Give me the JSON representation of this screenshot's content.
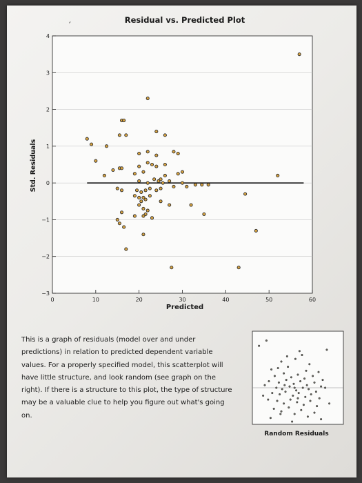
{
  "caption": "This is a graph of residuals (model over and under predictions) in relation to predicted dependent variable values. For a properly specified model, this scatterplot will have little structure, and look random (see graph on the right). If there is a structure to this plot, the type of structure may be a valuable clue to help you figure out what's going on.",
  "colors": {
    "point_fill": "#d9a441",
    "point_stroke": "#2a2a2a",
    "axis": "#222222",
    "zero_line": "#111111"
  },
  "chart_data": [
    {
      "type": "scatter",
      "title": "Residual vs. Predicted Plot",
      "xlabel": "Predicted",
      "ylabel": "Std. Residuals",
      "xlim": [
        0,
        60
      ],
      "ylim": [
        -3,
        4
      ],
      "xticks": [
        0,
        10,
        20,
        30,
        40,
        50,
        60
      ],
      "yticks": [
        -3,
        -2,
        -1,
        0,
        1,
        2,
        3,
        4
      ],
      "grid": "horizontal",
      "reference_line": {
        "y": 0,
        "x_from": 8,
        "x_to": 58
      },
      "points": [
        [
          57,
          3.5
        ],
        [
          22,
          2.3
        ],
        [
          16,
          1.7
        ],
        [
          16.5,
          1.7
        ],
        [
          15.5,
          1.3
        ],
        [
          17,
          1.3
        ],
        [
          24,
          1.4
        ],
        [
          26,
          1.3
        ],
        [
          8,
          1.2
        ],
        [
          9,
          1.05
        ],
        [
          12.5,
          1.0
        ],
        [
          10,
          0.6
        ],
        [
          20,
          0.8
        ],
        [
          22,
          0.85
        ],
        [
          24,
          0.75
        ],
        [
          28,
          0.85
        ],
        [
          29,
          0.8
        ],
        [
          23,
          0.5
        ],
        [
          22,
          0.55
        ],
        [
          24,
          0.45
        ],
        [
          26,
          0.5
        ],
        [
          20,
          0.45
        ],
        [
          14,
          0.35
        ],
        [
          15.5,
          0.4
        ],
        [
          16,
          0.4
        ],
        [
          21,
          0.3
        ],
        [
          19,
          0.25
        ],
        [
          26,
          0.2
        ],
        [
          29,
          0.25
        ],
        [
          30,
          0.3
        ],
        [
          12,
          0.2
        ],
        [
          52,
          0.2
        ],
        [
          20,
          0.05
        ],
        [
          22,
          0.0
        ],
        [
          23.5,
          0.1
        ],
        [
          24.5,
          0.05
        ],
        [
          25,
          0.1
        ],
        [
          25.5,
          0.0
        ],
        [
          27,
          0.05
        ],
        [
          30,
          0.0
        ],
        [
          33,
          -0.05
        ],
        [
          34.5,
          -0.05
        ],
        [
          36,
          -0.05
        ],
        [
          15,
          -0.15
        ],
        [
          16,
          -0.2
        ],
        [
          19.5,
          -0.2
        ],
        [
          20.5,
          -0.25
        ],
        [
          21.5,
          -0.2
        ],
        [
          22.5,
          -0.15
        ],
        [
          24,
          -0.2
        ],
        [
          25,
          -0.15
        ],
        [
          28,
          -0.1
        ],
        [
          31,
          -0.1
        ],
        [
          44.5,
          -0.3
        ],
        [
          19,
          -0.35
        ],
        [
          20,
          -0.4
        ],
        [
          21,
          -0.4
        ],
        [
          22.5,
          -0.35
        ],
        [
          20.5,
          -0.5
        ],
        [
          21.5,
          -0.45
        ],
        [
          25,
          -0.5
        ],
        [
          27,
          -0.6
        ],
        [
          32,
          -0.6
        ],
        [
          20,
          -0.6
        ],
        [
          21,
          -0.7
        ],
        [
          22,
          -0.75
        ],
        [
          21.5,
          -0.85
        ],
        [
          19,
          -0.9
        ],
        [
          16,
          -0.8
        ],
        [
          15,
          -1.0
        ],
        [
          15.5,
          -1.1
        ],
        [
          16.5,
          -1.2
        ],
        [
          21,
          -0.9
        ],
        [
          23,
          -0.95
        ],
        [
          35,
          -0.85
        ],
        [
          21,
          -1.4
        ],
        [
          17,
          -1.8
        ],
        [
          47,
          -1.3
        ],
        [
          27.5,
          -2.3
        ],
        [
          43,
          -2.3
        ]
      ]
    },
    {
      "type": "scatter",
      "title": "Random Residuals",
      "description_points": "random cloud centered on zero",
      "points": [
        [
          3,
          3.2
        ],
        [
          12,
          3.6
        ],
        [
          85,
          2.9
        ],
        [
          47,
          2.2
        ],
        [
          55,
          2.5
        ],
        [
          30,
          2.0
        ],
        [
          18,
          1.4
        ],
        [
          38,
          1.6
        ],
        [
          64,
          1.8
        ],
        [
          75,
          1.2
        ],
        [
          22,
          0.9
        ],
        [
          33,
          1.1
        ],
        [
          42,
          0.8
        ],
        [
          50,
          1.0
        ],
        [
          58,
          0.7
        ],
        [
          68,
          0.9
        ],
        [
          80,
          0.6
        ],
        [
          15,
          0.5
        ],
        [
          27,
          0.4
        ],
        [
          36,
          0.6
        ],
        [
          45,
          0.3
        ],
        [
          53,
          0.5
        ],
        [
          61,
          0.2
        ],
        [
          70,
          0.4
        ],
        [
          78,
          0.1
        ],
        [
          10,
          0.2
        ],
        [
          24,
          0.0
        ],
        [
          31,
          -0.1
        ],
        [
          40,
          0.1
        ],
        [
          48,
          -0.2
        ],
        [
          56,
          0.0
        ],
        [
          63,
          -0.1
        ],
        [
          72,
          -0.3
        ],
        [
          83,
          0.0
        ],
        [
          19,
          -0.4
        ],
        [
          28,
          -0.5
        ],
        [
          35,
          -0.3
        ],
        [
          44,
          -0.6
        ],
        [
          51,
          -0.4
        ],
        [
          59,
          -0.7
        ],
        [
          66,
          -0.5
        ],
        [
          76,
          -0.8
        ],
        [
          14,
          -0.9
        ],
        [
          25,
          -1.0
        ],
        [
          33,
          -1.2
        ],
        [
          41,
          -0.9
        ],
        [
          49,
          -1.1
        ],
        [
          57,
          -1.3
        ],
        [
          65,
          -1.0
        ],
        [
          73,
          -1.4
        ],
        [
          21,
          -1.6
        ],
        [
          30,
          -1.8
        ],
        [
          39,
          -1.5
        ],
        [
          46,
          -2.0
        ],
        [
          54,
          -1.7
        ],
        [
          62,
          -2.2
        ],
        [
          70,
          -1.9
        ],
        [
          17,
          -2.3
        ],
        [
          43,
          -2.6
        ],
        [
          78,
          -2.4
        ],
        [
          26,
          1.5
        ],
        [
          37,
          2.4
        ],
        [
          50,
          -0.8
        ],
        [
          60,
          1.3
        ],
        [
          29,
          -2.0
        ],
        [
          52,
          2.8
        ],
        [
          88,
          -1.2
        ],
        [
          8,
          -0.6
        ],
        [
          46,
          0.0
        ],
        [
          34,
          0.2
        ]
      ]
    }
  ]
}
